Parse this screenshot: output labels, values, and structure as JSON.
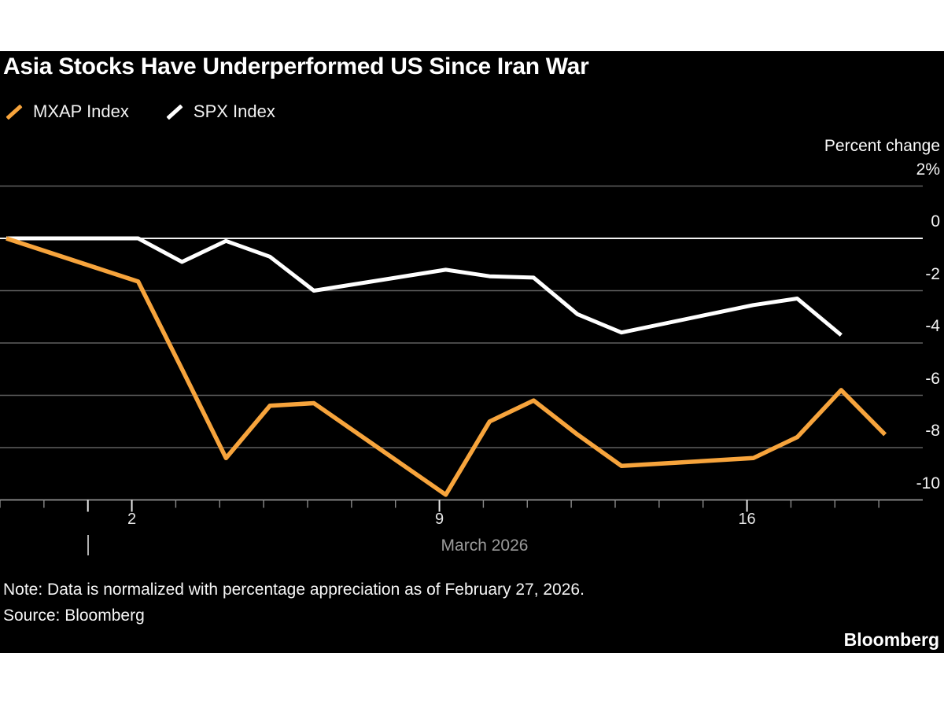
{
  "page": {
    "background": "#FFFFFF",
    "canvas_background": "#000000"
  },
  "header": {
    "title": "Asia Stocks Have Underperformed US Since Iran War",
    "legend": [
      {
        "label": "MXAP Index",
        "color": "#F7A43C"
      },
      {
        "label": "SPX Index",
        "color": "#FFFFFF"
      }
    ]
  },
  "chart_data": {
    "type": "line",
    "title": "Asia Stocks Have Underperformed US Since Iran War",
    "ylabel": "Percent change",
    "grid": "horizontal",
    "legend_position": "top-left",
    "x": [
      "Feb 27",
      "Mar 2",
      "Mar 3",
      "Mar 4",
      "Mar 5",
      "Mar 6",
      "Mar 9",
      "Mar 10",
      "Mar 11",
      "Mar 12",
      "Mar 13",
      "Mar 16",
      "Mar 17",
      "Mar 18",
      "Mar 19"
    ],
    "day_offsets": [
      0,
      3,
      4,
      5,
      6,
      7,
      10,
      11,
      12,
      13,
      14,
      17,
      18,
      19,
      20
    ],
    "series": [
      {
        "name": "SPX Index",
        "color": "#FFFFFF",
        "values": [
          0,
          0,
          -0.9,
          -0.1,
          -0.7,
          -2.0,
          -1.2,
          -1.45,
          -1.5,
          -2.9,
          -3.6,
          -2.55,
          -2.3,
          -3.7,
          null
        ]
      },
      {
        "name": "MXAP Index",
        "color": "#F7A43C",
        "values": [
          0,
          -1.65,
          -5.0,
          -8.4,
          -6.4,
          -6.3,
          -9.8,
          -7.0,
          -6.2,
          -7.5,
          -8.7,
          -8.4,
          -7.6,
          -5.8,
          -7.5
        ]
      }
    ],
    "ylim": [
      -10.7,
      2.3
    ],
    "y_gridlines": [
      {
        "value": 2,
        "label": "2%"
      },
      {
        "value": 0,
        "label": "0"
      },
      {
        "value": -2,
        "label": "-2"
      },
      {
        "value": -4,
        "label": "-4"
      },
      {
        "value": -6,
        "label": "-6"
      },
      {
        "value": -8,
        "label": "-8"
      },
      {
        "value": -10,
        "label": "-10"
      }
    ],
    "x_axis": {
      "tick_days": [
        0,
        1,
        2,
        3,
        4,
        5,
        6,
        7,
        8,
        9,
        10,
        11,
        12,
        13,
        14,
        15,
        16,
        17,
        18,
        19,
        20
      ],
      "labeled_ticks": [
        {
          "day": 3,
          "label": "2"
        },
        {
          "day": 10,
          "label": "9"
        },
        {
          "day": 17,
          "label": "16"
        }
      ],
      "long_tick_days": [
        2,
        3,
        10,
        17
      ],
      "month_marker_day": 2,
      "month_label": "March 2026"
    }
  },
  "footer": {
    "note": "Note: Data is normalized with percentage appreciation as of February 27, 2026.",
    "source": "Source: Bloomberg",
    "brand": "Bloomberg"
  }
}
